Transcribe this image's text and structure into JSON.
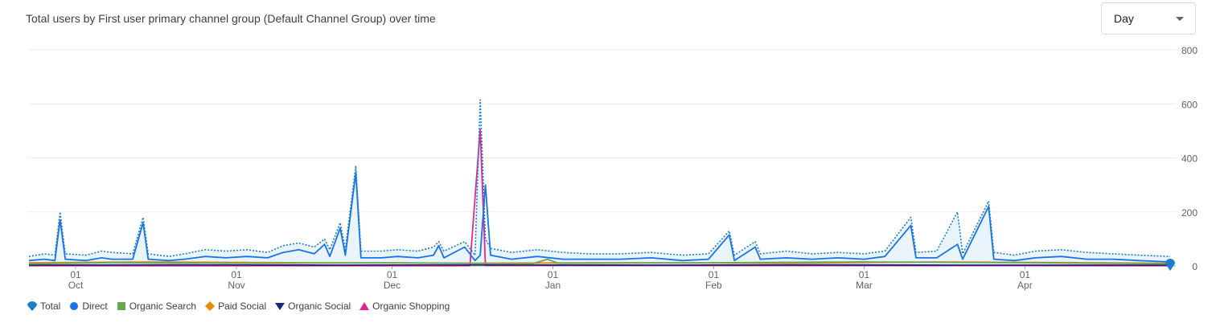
{
  "header": {
    "title": "Total users by First user primary channel group (Default Channel Group) over time"
  },
  "granularity": {
    "selected": "Day"
  },
  "icons": {
    "dropdown": "chevron-down-icon"
  },
  "legend": [
    {
      "name": "Total",
      "marker": "teardrop",
      "color": "#1a7ec9"
    },
    {
      "name": "Direct",
      "marker": "circle",
      "color": "#1a73e8"
    },
    {
      "name": "Organic Search",
      "marker": "square",
      "color": "#6aa84f"
    },
    {
      "name": "Paid Social",
      "marker": "diamond",
      "color": "#e8890c"
    },
    {
      "name": "Organic Social",
      "marker": "triangle-down",
      "color": "#1a237e"
    },
    {
      "name": "Organic Shopping",
      "marker": "triangle-up",
      "color": "#e52592"
    }
  ],
  "chart_data": {
    "type": "line",
    "title": "Total users by First user primary channel group (Default Channel Group) over time",
    "x_start": "2023-09-22",
    "x_end": "2024-04-29",
    "x_ticks": [
      {
        "date": "2023-10-01",
        "day": "01",
        "month": "Oct"
      },
      {
        "date": "2023-11-01",
        "day": "01",
        "month": "Nov"
      },
      {
        "date": "2023-12-01",
        "day": "01",
        "month": "Dec"
      },
      {
        "date": "2024-01-01",
        "day": "01",
        "month": "Jan"
      },
      {
        "date": "2024-02-01",
        "day": "01",
        "month": "Feb"
      },
      {
        "date": "2024-03-01",
        "day": "01",
        "month": "Mar"
      },
      {
        "date": "2024-04-01",
        "day": "01",
        "month": "Apr"
      }
    ],
    "ylim": [
      0,
      800
    ],
    "y_ticks": [
      0,
      200,
      400,
      600,
      800
    ],
    "y_axis_side": "right",
    "grid": true,
    "legend_position": "bottom-left",
    "series": [
      {
        "name": "Total",
        "color": "#1a7ec9",
        "style": "dotted",
        "points": [
          [
            "2023-09-22",
            35
          ],
          [
            "2023-09-25",
            45
          ],
          [
            "2023-09-27",
            40
          ],
          [
            "2023-09-28",
            200
          ],
          [
            "2023-09-29",
            45
          ],
          [
            "2023-10-03",
            40
          ],
          [
            "2023-10-06",
            55
          ],
          [
            "2023-10-08",
            50
          ],
          [
            "2023-10-12",
            45
          ],
          [
            "2023-10-14",
            180
          ],
          [
            "2023-10-15",
            45
          ],
          [
            "2023-10-19",
            35
          ],
          [
            "2023-10-22",
            45
          ],
          [
            "2023-10-26",
            60
          ],
          [
            "2023-10-30",
            55
          ],
          [
            "2023-11-03",
            60
          ],
          [
            "2023-11-07",
            50
          ],
          [
            "2023-11-10",
            75
          ],
          [
            "2023-11-13",
            85
          ],
          [
            "2023-11-16",
            70
          ],
          [
            "2023-11-18",
            100
          ],
          [
            "2023-11-19",
            60
          ],
          [
            "2023-11-21",
            160
          ],
          [
            "2023-11-22",
            60
          ],
          [
            "2023-11-24",
            370
          ],
          [
            "2023-11-25",
            55
          ],
          [
            "2023-11-29",
            55
          ],
          [
            "2023-12-02",
            60
          ],
          [
            "2023-12-06",
            55
          ],
          [
            "2023-12-09",
            70
          ],
          [
            "2023-12-10",
            90
          ],
          [
            "2023-12-11",
            55
          ],
          [
            "2023-12-15",
            90
          ],
          [
            "2023-12-17",
            40
          ],
          [
            "2023-12-18",
            615
          ],
          [
            "2023-12-19",
            100
          ],
          [
            "2023-12-20",
            65
          ],
          [
            "2023-12-24",
            50
          ],
          [
            "2023-12-29",
            60
          ],
          [
            "2024-01-03",
            50
          ],
          [
            "2024-01-08",
            45
          ],
          [
            "2024-01-14",
            45
          ],
          [
            "2024-01-20",
            50
          ],
          [
            "2024-01-26",
            40
          ],
          [
            "2024-01-31",
            45
          ],
          [
            "2024-02-04",
            130
          ],
          [
            "2024-02-05",
            40
          ],
          [
            "2024-02-09",
            90
          ],
          [
            "2024-02-10",
            45
          ],
          [
            "2024-02-15",
            55
          ],
          [
            "2024-02-20",
            45
          ],
          [
            "2024-02-25",
            50
          ],
          [
            "2024-03-01",
            45
          ],
          [
            "2024-03-05",
            55
          ],
          [
            "2024-03-10",
            180
          ],
          [
            "2024-03-11",
            50
          ],
          [
            "2024-03-15",
            55
          ],
          [
            "2024-03-19",
            200
          ],
          [
            "2024-03-20",
            45
          ],
          [
            "2024-03-25",
            240
          ],
          [
            "2024-03-26",
            50
          ],
          [
            "2024-03-30",
            40
          ],
          [
            "2024-04-03",
            55
          ],
          [
            "2024-04-08",
            60
          ],
          [
            "2024-04-13",
            50
          ],
          [
            "2024-04-18",
            45
          ],
          [
            "2024-04-23",
            40
          ],
          [
            "2024-04-29",
            35
          ]
        ]
      },
      {
        "name": "Direct",
        "color": "#1a73e8",
        "style": "solid",
        "points": [
          [
            "2023-09-22",
            20
          ],
          [
            "2023-09-25",
            25
          ],
          [
            "2023-09-27",
            20
          ],
          [
            "2023-09-28",
            170
          ],
          [
            "2023-09-29",
            25
          ],
          [
            "2023-10-03",
            20
          ],
          [
            "2023-10-06",
            30
          ],
          [
            "2023-10-08",
            25
          ],
          [
            "2023-10-12",
            25
          ],
          [
            "2023-10-14",
            160
          ],
          [
            "2023-10-15",
            25
          ],
          [
            "2023-10-19",
            20
          ],
          [
            "2023-10-22",
            25
          ],
          [
            "2023-10-26",
            35
          ],
          [
            "2023-10-30",
            30
          ],
          [
            "2023-11-03",
            35
          ],
          [
            "2023-11-07",
            30
          ],
          [
            "2023-11-10",
            50
          ],
          [
            "2023-11-13",
            60
          ],
          [
            "2023-11-16",
            45
          ],
          [
            "2023-11-18",
            80
          ],
          [
            "2023-11-19",
            35
          ],
          [
            "2023-11-21",
            140
          ],
          [
            "2023-11-22",
            40
          ],
          [
            "2023-11-24",
            345
          ],
          [
            "2023-11-25",
            30
          ],
          [
            "2023-11-29",
            30
          ],
          [
            "2023-12-02",
            35
          ],
          [
            "2023-12-06",
            30
          ],
          [
            "2023-12-09",
            40
          ],
          [
            "2023-12-10",
            75
          ],
          [
            "2023-12-11",
            30
          ],
          [
            "2023-12-15",
            70
          ],
          [
            "2023-12-17",
            20
          ],
          [
            "2023-12-18",
            40
          ],
          [
            "2023-12-19",
            300
          ],
          [
            "2023-12-20",
            40
          ],
          [
            "2023-12-24",
            25
          ],
          [
            "2023-12-29",
            35
          ],
          [
            "2024-01-03",
            25
          ],
          [
            "2024-01-08",
            25
          ],
          [
            "2024-01-14",
            25
          ],
          [
            "2024-01-20",
            30
          ],
          [
            "2024-01-26",
            20
          ],
          [
            "2024-01-31",
            25
          ],
          [
            "2024-02-04",
            115
          ],
          [
            "2024-02-05",
            20
          ],
          [
            "2024-02-09",
            70
          ],
          [
            "2024-02-10",
            25
          ],
          [
            "2024-02-15",
            30
          ],
          [
            "2024-02-20",
            25
          ],
          [
            "2024-02-25",
            30
          ],
          [
            "2024-03-01",
            25
          ],
          [
            "2024-03-05",
            35
          ],
          [
            "2024-03-10",
            150
          ],
          [
            "2024-03-11",
            30
          ],
          [
            "2024-03-15",
            30
          ],
          [
            "2024-03-19",
            80
          ],
          [
            "2024-03-20",
            25
          ],
          [
            "2024-03-25",
            220
          ],
          [
            "2024-03-26",
            25
          ],
          [
            "2024-03-30",
            20
          ],
          [
            "2024-04-03",
            30
          ],
          [
            "2024-04-08",
            35
          ],
          [
            "2024-04-13",
            25
          ],
          [
            "2024-04-18",
            25
          ],
          [
            "2024-04-23",
            20
          ],
          [
            "2024-04-29",
            15
          ]
        ]
      },
      {
        "name": "Organic Search",
        "color": "#6aa84f",
        "style": "solid",
        "points": [
          [
            "2023-09-22",
            8
          ],
          [
            "2023-10-08",
            12
          ],
          [
            "2023-11-05",
            10
          ],
          [
            "2023-12-01",
            12
          ],
          [
            "2023-12-28",
            8
          ],
          [
            "2023-12-31",
            25
          ],
          [
            "2024-01-02",
            10
          ],
          [
            "2024-02-01",
            12
          ],
          [
            "2024-03-01",
            15
          ],
          [
            "2024-04-01",
            12
          ],
          [
            "2024-04-29",
            8
          ]
        ]
      },
      {
        "name": "Paid Social",
        "color": "#e8890c",
        "style": "solid",
        "points": [
          [
            "2023-09-22",
            12
          ],
          [
            "2023-10-15",
            15
          ],
          [
            "2023-11-15",
            12
          ],
          [
            "2023-12-15",
            10
          ],
          [
            "2024-01-15",
            12
          ],
          [
            "2024-02-15",
            10
          ],
          [
            "2024-03-15",
            15
          ],
          [
            "2024-04-15",
            12
          ],
          [
            "2024-04-29",
            10
          ]
        ]
      },
      {
        "name": "Organic Social",
        "color": "#1a237e",
        "style": "solid",
        "points": [
          [
            "2023-09-22",
            3
          ],
          [
            "2023-10-20",
            4
          ],
          [
            "2023-11-20",
            3
          ],
          [
            "2023-12-20",
            4
          ],
          [
            "2024-01-20",
            3
          ],
          [
            "2024-02-20",
            4
          ],
          [
            "2024-03-20",
            3
          ],
          [
            "2024-04-29",
            3
          ]
        ]
      },
      {
        "name": "Organic Shopping",
        "color": "#e52592",
        "style": "solid",
        "points": [
          [
            "2023-09-22",
            1
          ],
          [
            "2023-12-16",
            1
          ],
          [
            "2023-12-18",
            505
          ],
          [
            "2023-12-19",
            2
          ],
          [
            "2024-04-29",
            1
          ]
        ]
      }
    ]
  }
}
